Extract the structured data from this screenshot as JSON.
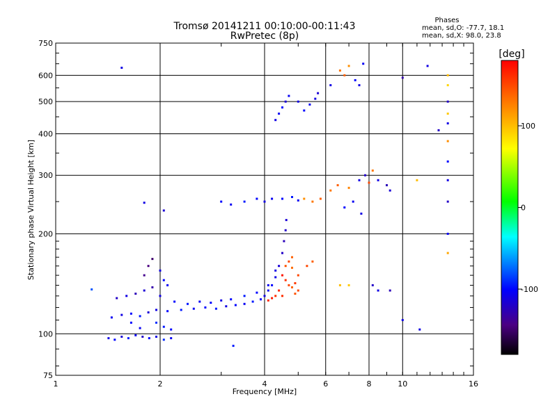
{
  "chart_data": {
    "type": "scatter",
    "title": "Tromsø 20141211 00:10:00-00:11:43",
    "subtitle": "RwPretec (8p)",
    "xlabel": "Frequency [MHz]",
    "ylabel": "Stationary phase Virtual Height [km]",
    "x_scale": "log",
    "y_scale": "log",
    "xlim": [
      1,
      16
    ],
    "ylim": [
      75,
      750
    ],
    "x_ticks": [
      1,
      2,
      4,
      6,
      8,
      10,
      16
    ],
    "y_ticks": [
      75,
      100,
      200,
      300,
      400,
      500,
      600,
      750
    ],
    "grid": true,
    "stats": {
      "heading": "Phases",
      "line_o": "mean, sd,O: -77.7, 18.1",
      "line_x": "mean, sd,X:  98.0, 23.8"
    },
    "colorbar": {
      "label": "[deg]",
      "range": [
        -180,
        180
      ],
      "ticks": [
        100,
        0,
        -100
      ]
    },
    "series": [
      {
        "points": [
          [
            1.42,
            97,
            -110
          ],
          [
            1.48,
            96,
            -100
          ],
          [
            1.55,
            98,
            -115
          ],
          [
            1.62,
            97,
            -95
          ],
          [
            1.7,
            99,
            -105
          ],
          [
            1.78,
            98,
            -120
          ],
          [
            1.86,
            97,
            -100
          ],
          [
            1.95,
            98,
            -110
          ],
          [
            2.05,
            96,
            -90
          ],
          [
            2.15,
            97,
            -105
          ],
          [
            1.45,
            112,
            -105
          ],
          [
            1.55,
            114,
            -110
          ],
          [
            1.65,
            115,
            -100
          ],
          [
            1.75,
            113,
            -95
          ],
          [
            1.85,
            116,
            -115
          ],
          [
            1.95,
            118,
            -110
          ],
          [
            2.1,
            117,
            -100
          ],
          [
            2.3,
            118,
            -95
          ],
          [
            2.5,
            119,
            -105
          ],
          [
            2.7,
            120,
            -100
          ],
          [
            2.9,
            119,
            -95
          ],
          [
            3.1,
            121,
            -110
          ],
          [
            3.3,
            122,
            -100
          ],
          [
            3.5,
            123,
            -105
          ],
          [
            3.7,
            125,
            -95
          ],
          [
            3.9,
            127,
            -100
          ],
          [
            4.0,
            130,
            -110
          ],
          [
            4.1,
            135,
            -105
          ],
          [
            4.2,
            140,
            -100
          ],
          [
            4.3,
            148,
            -110
          ],
          [
            4.4,
            160,
            -115
          ],
          [
            4.5,
            175,
            -120
          ],
          [
            4.55,
            190,
            -125
          ],
          [
            4.6,
            205,
            -120
          ],
          [
            4.62,
            220,
            -115
          ],
          [
            1.5,
            128,
            -120
          ],
          [
            1.6,
            130,
            -110
          ],
          [
            1.7,
            132,
            -125
          ],
          [
            1.8,
            135,
            -115
          ],
          [
            1.9,
            138,
            -130
          ],
          [
            2.0,
            130,
            -110
          ],
          [
            2.2,
            125,
            -100
          ],
          [
            2.4,
            123,
            -95
          ],
          [
            2.6,
            125,
            -105
          ],
          [
            2.8,
            124,
            -100
          ],
          [
            3.0,
            126,
            -110
          ],
          [
            3.2,
            127,
            -100
          ],
          [
            3.5,
            130,
            -95
          ],
          [
            3.8,
            133,
            -100
          ],
          [
            4.1,
            140,
            -105
          ],
          [
            4.3,
            155,
            -110
          ],
          [
            1.8,
            150,
            -140
          ],
          [
            1.85,
            160,
            -145
          ],
          [
            1.9,
            168,
            -150
          ],
          [
            2.0,
            155,
            -110
          ],
          [
            2.05,
            145,
            -100
          ],
          [
            2.1,
            140,
            -105
          ],
          [
            1.95,
            108,
            -90
          ],
          [
            2.05,
            105,
            -95
          ],
          [
            2.15,
            103,
            -100
          ],
          [
            1.75,
            104,
            -105
          ],
          [
            1.65,
            108,
            -100
          ],
          [
            4.5,
            150,
            170
          ],
          [
            4.6,
            145,
            160
          ],
          [
            4.7,
            140,
            150
          ],
          [
            4.8,
            138,
            140
          ],
          [
            4.9,
            142,
            155
          ],
          [
            5.0,
            150,
            150
          ],
          [
            4.6,
            160,
            145
          ],
          [
            4.7,
            165,
            150
          ],
          [
            4.8,
            170,
            140
          ],
          [
            4.4,
            135,
            165
          ],
          [
            4.3,
            130,
            160
          ],
          [
            4.2,
            128,
            170
          ],
          [
            4.1,
            126,
            165
          ],
          [
            4.5,
            130,
            160
          ],
          [
            4.9,
            132,
            145
          ],
          [
            5.0,
            135,
            150
          ],
          [
            4.8,
            158,
            135
          ],
          [
            4.3,
            440,
            -110
          ],
          [
            4.4,
            460,
            -105
          ],
          [
            4.5,
            480,
            -100
          ],
          [
            4.6,
            500,
            -115
          ],
          [
            4.7,
            520,
            -105
          ],
          [
            5.0,
            500,
            -110
          ],
          [
            5.2,
            470,
            -100
          ],
          [
            5.4,
            490,
            -105
          ],
          [
            5.6,
            510,
            -110
          ],
          [
            5.7,
            530,
            -115
          ],
          [
            3.0,
            250,
            -100
          ],
          [
            3.2,
            245,
            -105
          ],
          [
            3.5,
            250,
            -95
          ],
          [
            3.8,
            255,
            -100
          ],
          [
            4.0,
            250,
            -110
          ],
          [
            4.2,
            255,
            -105
          ],
          [
            4.5,
            255,
            -100
          ],
          [
            4.8,
            258,
            -95
          ],
          [
            5.0,
            252,
            -105
          ],
          [
            5.2,
            255,
            120
          ],
          [
            5.5,
            250,
            130
          ],
          [
            5.8,
            255,
            140
          ],
          [
            6.2,
            270,
            130
          ],
          [
            6.5,
            280,
            140
          ],
          [
            7.0,
            275,
            125
          ],
          [
            7.5,
            290,
            -110
          ],
          [
            7.8,
            300,
            -120
          ],
          [
            8.0,
            285,
            150
          ],
          [
            8.2,
            310,
            130
          ],
          [
            8.5,
            290,
            -110
          ],
          [
            9.0,
            280,
            -125
          ],
          [
            9.2,
            270,
            -115
          ],
          [
            7.2,
            250,
            -105
          ],
          [
            6.8,
            240,
            -100
          ],
          [
            7.6,
            230,
            -110
          ],
          [
            6.6,
            620,
            130
          ],
          [
            6.8,
            600,
            140
          ],
          [
            7.0,
            640,
            120
          ],
          [
            7.5,
            560,
            -110
          ],
          [
            7.7,
            650,
            -105
          ],
          [
            6.2,
            560,
            -110
          ],
          [
            7.3,
            580,
            -100
          ],
          [
            6.6,
            140,
            100
          ],
          [
            7.0,
            140,
            95
          ],
          [
            8.2,
            140,
            -120
          ],
          [
            8.5,
            135,
            -110
          ],
          [
            9.2,
            135,
            -125
          ],
          [
            10.0,
            110,
            -110
          ],
          [
            5.3,
            160,
            150
          ],
          [
            5.5,
            165,
            140
          ],
          [
            13.5,
            600,
            100
          ],
          [
            13.5,
            500,
            -120
          ],
          [
            13.5,
            430,
            -110
          ],
          [
            13.5,
            380,
            120
          ],
          [
            13.5,
            330,
            -100
          ],
          [
            13.5,
            290,
            -110
          ],
          [
            13.5,
            250,
            -120
          ],
          [
            13.5,
            200,
            -105
          ],
          [
            13.5,
            175,
            110
          ],
          [
            13.5,
            560,
            90
          ],
          [
            13.5,
            460,
            95
          ],
          [
            1.55,
            632,
            -110
          ],
          [
            1.8,
            248,
            -110
          ],
          [
            2.05,
            235,
            -115
          ],
          [
            1.27,
            136,
            -80
          ],
          [
            3.25,
            92,
            -95
          ],
          [
            11.8,
            640,
            -110
          ],
          [
            11.2,
            103,
            -110
          ],
          [
            10.0,
            590,
            -130
          ],
          [
            12.7,
            410,
            -120
          ],
          [
            11.0,
            290,
            100
          ]
        ]
      }
    ]
  }
}
